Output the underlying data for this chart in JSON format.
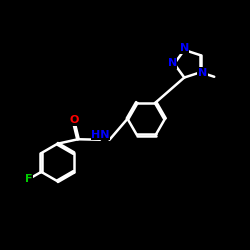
{
  "bg_color": "#000000",
  "bond_color": "#ffffff",
  "atom_colors": {
    "N": "#0000ff",
    "O": "#ff0000",
    "F": "#00cc00",
    "C": "#ffffff",
    "H": "#ffffff"
  },
  "bond_width": 1.8,
  "font_size_atom": 9,
  "fig_size": [
    2.5,
    2.5
  ],
  "dpi": 100
}
